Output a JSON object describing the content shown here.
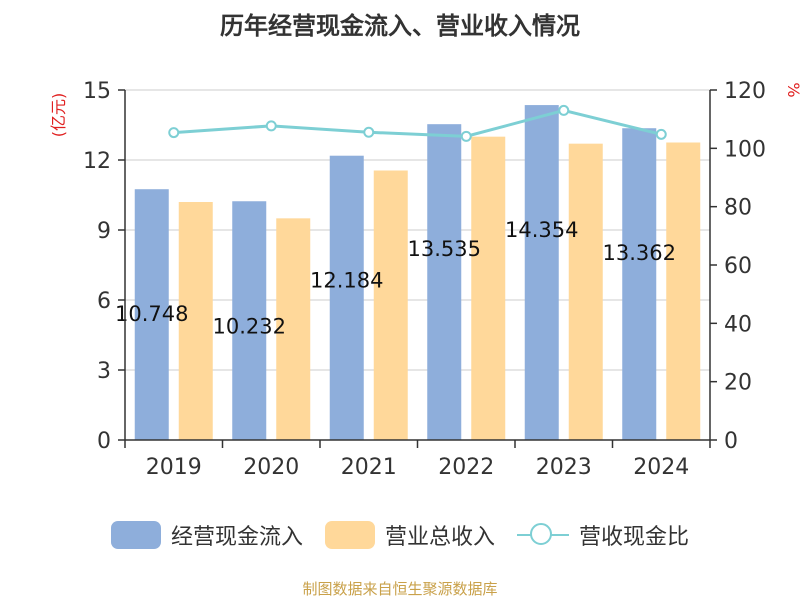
{
  "chart_data": {
    "type": "bar",
    "title": "历年经营现金流入、营业收入情况",
    "categories": [
      "2019",
      "2020",
      "2021",
      "2022",
      "2023",
      "2024"
    ],
    "series": [
      {
        "name": "经营现金流入",
        "type": "bar",
        "axis": "left",
        "color": "#8eaedb",
        "values": [
          10.748,
          10.232,
          12.184,
          13.535,
          14.354,
          13.362
        ],
        "labels": [
          "10.748",
          "10.232",
          "12.184",
          "13.535",
          "14.354",
          "13.362"
        ]
      },
      {
        "name": "营业总收入",
        "type": "bar",
        "axis": "left",
        "color": "#ffd89a",
        "values": [
          10.2,
          9.5,
          11.55,
          13.0,
          12.7,
          12.75
        ]
      },
      {
        "name": "营收现金比",
        "type": "line",
        "axis": "right",
        "color": "#7dcfd4",
        "values": [
          105.4,
          107.7,
          105.5,
          104.1,
          113.0,
          104.8
        ]
      }
    ],
    "y_left": {
      "label": "(亿元)",
      "min": 0,
      "max": 15,
      "ticks": [
        0,
        3,
        6,
        9,
        12,
        15
      ]
    },
    "y_right": {
      "label": "%",
      "min": 0,
      "max": 120,
      "ticks": [
        0,
        20,
        40,
        60,
        80,
        100,
        120
      ]
    },
    "grid": true,
    "legend_position": "bottom"
  },
  "source_note": "制图数据来自恒生聚源数据库"
}
